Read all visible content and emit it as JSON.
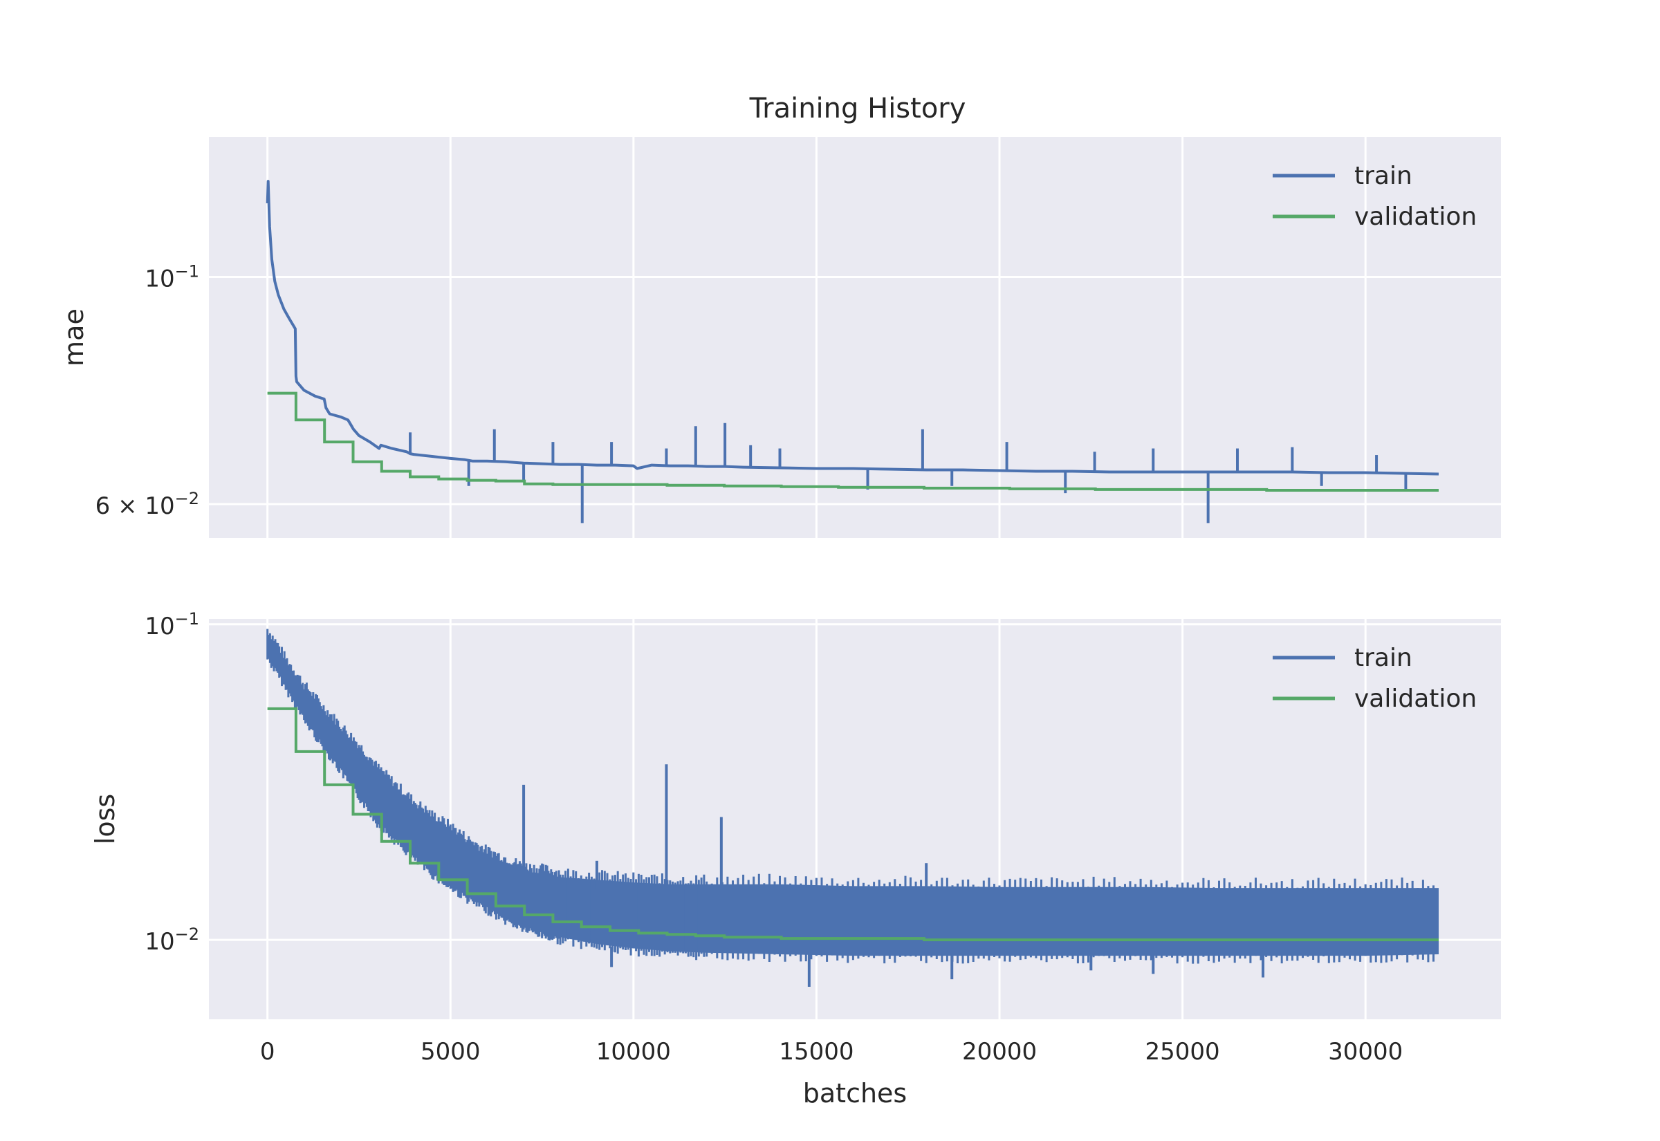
{
  "figure": {
    "title": "Training History"
  },
  "colors": {
    "train": "#4C72B0",
    "validation": "#55A868",
    "panel_bg": "#EAEAF2",
    "grid": "#FFFFFF"
  },
  "chart_data": [
    {
      "type": "line",
      "title": "Training History",
      "xlabel": "",
      "ylabel": "mae",
      "yscale": "log",
      "xlim": [
        -1600,
        33700
      ],
      "ylim": [
        0.0556,
        0.137
      ],
      "xticks": [
        0,
        5000,
        10000,
        15000,
        20000,
        25000,
        30000
      ],
      "xtick_labels_visible": false,
      "yticks": [
        {
          "value": 0.1,
          "base": "10",
          "exp": "−1",
          "coef": ""
        },
        {
          "value": 0.06,
          "base": "10",
          "exp": "−2",
          "coef": "6 × "
        }
      ],
      "legend": {
        "position": "top-right",
        "entries": [
          "train",
          "validation"
        ]
      },
      "grid": true,
      "series": [
        {
          "name": "train",
          "x": [
            0,
            20,
            60,
            120,
            200,
            300,
            450,
            600,
            760,
            780,
            800,
            1000,
            1300,
            1550,
            1600,
            1700,
            2000,
            2200,
            2300,
            2350,
            2500,
            2800,
            3050,
            3100,
            3400,
            3800,
            3900,
            4000,
            4500,
            5000,
            5400,
            5600,
            6000,
            6500,
            7000,
            7500,
            8000,
            8500,
            9000,
            9500,
            10000,
            10100,
            10500,
            11000,
            11500,
            12000,
            12500,
            13000,
            14000,
            15000,
            16000,
            17000,
            18000,
            19000,
            20000,
            21000,
            22000,
            23000,
            24000,
            25000,
            26000,
            27000,
            28000,
            29000,
            30000,
            31000,
            32000
          ],
          "values": [
            0.118,
            0.124,
            0.112,
            0.104,
            0.099,
            0.096,
            0.093,
            0.091,
            0.089,
            0.08,
            0.079,
            0.0775,
            0.0765,
            0.076,
            0.0745,
            0.0735,
            0.073,
            0.0725,
            0.0715,
            0.071,
            0.07,
            0.069,
            0.068,
            0.0685,
            0.068,
            0.0675,
            0.0672,
            0.0671,
            0.0668,
            0.0665,
            0.0663,
            0.0661,
            0.0661,
            0.066,
            0.0658,
            0.0657,
            0.0656,
            0.0656,
            0.0655,
            0.0655,
            0.0654,
            0.065,
            0.0655,
            0.0654,
            0.0654,
            0.0653,
            0.0653,
            0.0652,
            0.0651,
            0.065,
            0.065,
            0.0649,
            0.0648,
            0.0648,
            0.0647,
            0.0646,
            0.0646,
            0.0645,
            0.0645,
            0.0645,
            0.0645,
            0.0645,
            0.0645,
            0.0644,
            0.0644,
            0.0643,
            0.0642
          ],
          "spikes": [
            {
              "x": 3900,
              "value": 0.0705
            },
            {
              "x": 5500,
              "value": 0.0625
            },
            {
              "x": 6200,
              "value": 0.071
            },
            {
              "x": 7000,
              "value": 0.0632
            },
            {
              "x": 7800,
              "value": 0.069
            },
            {
              "x": 8600,
              "value": 0.0575
            },
            {
              "x": 9400,
              "value": 0.069
            },
            {
              "x": 10900,
              "value": 0.068
            },
            {
              "x": 11700,
              "value": 0.0715
            },
            {
              "x": 12500,
              "value": 0.072
            },
            {
              "x": 13200,
              "value": 0.0685
            },
            {
              "x": 14000,
              "value": 0.068
            },
            {
              "x": 16400,
              "value": 0.062
            },
            {
              "x": 17900,
              "value": 0.071
            },
            {
              "x": 18700,
              "value": 0.0625
            },
            {
              "x": 20200,
              "value": 0.069
            },
            {
              "x": 21800,
              "value": 0.0615
            },
            {
              "x": 22600,
              "value": 0.0675
            },
            {
              "x": 24200,
              "value": 0.068
            },
            {
              "x": 25700,
              "value": 0.0575
            },
            {
              "x": 26500,
              "value": 0.068
            },
            {
              "x": 28000,
              "value": 0.0682
            },
            {
              "x": 28800,
              "value": 0.0625
            },
            {
              "x": 30300,
              "value": 0.067
            },
            {
              "x": 31100,
              "value": 0.062
            }
          ]
        },
        {
          "name": "validation",
          "step": true,
          "x": [
            0,
            780,
            1560,
            2340,
            3120,
            3900,
            4680,
            5460,
            6240,
            7020,
            7800,
            8580,
            9360,
            10140,
            10920,
            11700,
            12480,
            13260,
            14040,
            14820,
            15600,
            16380,
            17160,
            17940,
            18720,
            19500,
            20280,
            21060,
            21840,
            22620,
            23400,
            24180,
            24960,
            25740,
            26520,
            27300,
            28080,
            28860,
            29640,
            30420,
            31200,
            31980
          ],
          "values": [
            0.077,
            0.0725,
            0.069,
            0.066,
            0.0646,
            0.0638,
            0.0635,
            0.0633,
            0.0632,
            0.0628,
            0.0627,
            0.0627,
            0.0627,
            0.0627,
            0.0626,
            0.0626,
            0.0625,
            0.0625,
            0.0624,
            0.0624,
            0.0623,
            0.0623,
            0.0623,
            0.0622,
            0.0622,
            0.0622,
            0.0621,
            0.0621,
            0.0621,
            0.062,
            0.062,
            0.062,
            0.062,
            0.062,
            0.062,
            0.0619,
            0.0619,
            0.0619,
            0.0619,
            0.0619,
            0.0619,
            0.0619
          ]
        }
      ]
    },
    {
      "type": "line",
      "xlabel": "batches",
      "ylabel": "loss",
      "yscale": "log",
      "xlim": [
        -1600,
        33700
      ],
      "ylim": [
        0.0056,
        0.104
      ],
      "xticks": [
        0,
        5000,
        10000,
        15000,
        20000,
        25000,
        30000
      ],
      "xtick_labels": [
        "0",
        "5000",
        "10000",
        "15000",
        "20000",
        "25000",
        "30000"
      ],
      "yticks": [
        {
          "value": 0.1,
          "base": "10",
          "exp": "−1",
          "coef": ""
        },
        {
          "value": 0.01,
          "base": "10",
          "exp": "−2",
          "coef": ""
        }
      ],
      "legend": {
        "position": "top-right",
        "entries": [
          "train",
          "validation"
        ]
      },
      "grid": true,
      "series": [
        {
          "name": "train",
          "band": true,
          "x": [
            0,
            500,
            1000,
            1500,
            2000,
            2500,
            3000,
            3500,
            4000,
            4500,
            5000,
            5500,
            6000,
            6500,
            7000,
            7500,
            8000,
            9000,
            10000,
            11000,
            12000,
            14000,
            16000,
            18000,
            20000,
            22000,
            24000,
            26000,
            28000,
            30000,
            32000
          ],
          "lower": [
            0.08,
            0.064,
            0.051,
            0.042,
            0.035,
            0.029,
            0.024,
            0.021,
            0.0185,
            0.0165,
            0.015,
            0.0137,
            0.0127,
            0.0118,
            0.0111,
            0.0106,
            0.0102,
            0.0097,
            0.0094,
            0.0092,
            0.0091,
            0.009,
            0.0089,
            0.0089,
            0.0089,
            0.0089,
            0.0089,
            0.0089,
            0.0089,
            0.0089,
            0.009
          ],
          "upper": [
            0.093,
            0.075,
            0.062,
            0.053,
            0.046,
            0.04,
            0.034,
            0.03,
            0.0265,
            0.024,
            0.0222,
            0.02,
            0.0185,
            0.0175,
            0.0165,
            0.0162,
            0.0158,
            0.0155,
            0.0152,
            0.015,
            0.015,
            0.015,
            0.0148,
            0.0148,
            0.0147,
            0.0147,
            0.0147,
            0.0146,
            0.0146,
            0.0146,
            0.0146
          ],
          "spikes": [
            {
              "x": 7000,
              "value": 0.031
            },
            {
              "x": 9000,
              "value": 0.0178
            },
            {
              "x": 9400,
              "value": 0.0082
            },
            {
              "x": 10900,
              "value": 0.036
            },
            {
              "x": 12400,
              "value": 0.0245
            },
            {
              "x": 14800,
              "value": 0.0071
            },
            {
              "x": 18000,
              "value": 0.0175
            },
            {
              "x": 18700,
              "value": 0.0075
            },
            {
              "x": 22500,
              "value": 0.008
            },
            {
              "x": 24200,
              "value": 0.0078
            },
            {
              "x": 27200,
              "value": 0.0076
            }
          ]
        },
        {
          "name": "validation",
          "step": true,
          "x": [
            0,
            780,
            1560,
            2340,
            3120,
            3900,
            4680,
            5460,
            6240,
            7020,
            7800,
            8580,
            9360,
            10140,
            10920,
            11700,
            12480,
            13260,
            14040,
            14820,
            15600,
            16380,
            17160,
            17940,
            18720,
            19500,
            20280,
            21060,
            21840,
            22620,
            23400,
            24180,
            24960,
            25740,
            26520,
            27300,
            28080,
            28860,
            29640,
            30420,
            31200,
            31980
          ],
          "values": [
            0.054,
            0.0395,
            0.031,
            0.025,
            0.0205,
            0.0175,
            0.0155,
            0.014,
            0.0128,
            0.012,
            0.0114,
            0.011,
            0.0107,
            0.0105,
            0.0104,
            0.0103,
            0.0102,
            0.0102,
            0.0101,
            0.0101,
            0.0101,
            0.0101,
            0.0101,
            0.01,
            0.01,
            0.01,
            0.01,
            0.01,
            0.01,
            0.01,
            0.01,
            0.01,
            0.01,
            0.01,
            0.01,
            0.01,
            0.01,
            0.01,
            0.01,
            0.01,
            0.01,
            0.01
          ]
        }
      ]
    }
  ]
}
